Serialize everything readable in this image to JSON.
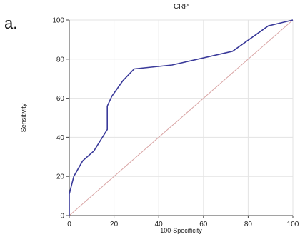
{
  "panel_label": "a.",
  "chart_data": {
    "type": "line",
    "title": "CRP",
    "xlabel": "100-Specificity",
    "ylabel": "Sensitivity",
    "xlim": [
      0,
      100
    ],
    "ylim": [
      0,
      100
    ],
    "x_ticks": [
      0,
      20,
      40,
      60,
      80,
      100
    ],
    "y_ticks": [
      0,
      20,
      40,
      60,
      80,
      100
    ],
    "grid": true,
    "series": [
      {
        "color": "#3a3a9a",
        "x": [
          0,
          0,
          2,
          6,
          11,
          17,
          17,
          19,
          24,
          29,
          46,
          73,
          89,
          100
        ],
        "y": [
          0,
          11,
          20,
          28,
          33,
          44,
          56,
          61,
          69,
          75,
          77,
          84,
          97,
          100
        ]
      },
      {
        "color": "#d9a4a4",
        "x": [
          0,
          100
        ],
        "y": [
          0,
          100
        ]
      }
    ]
  }
}
